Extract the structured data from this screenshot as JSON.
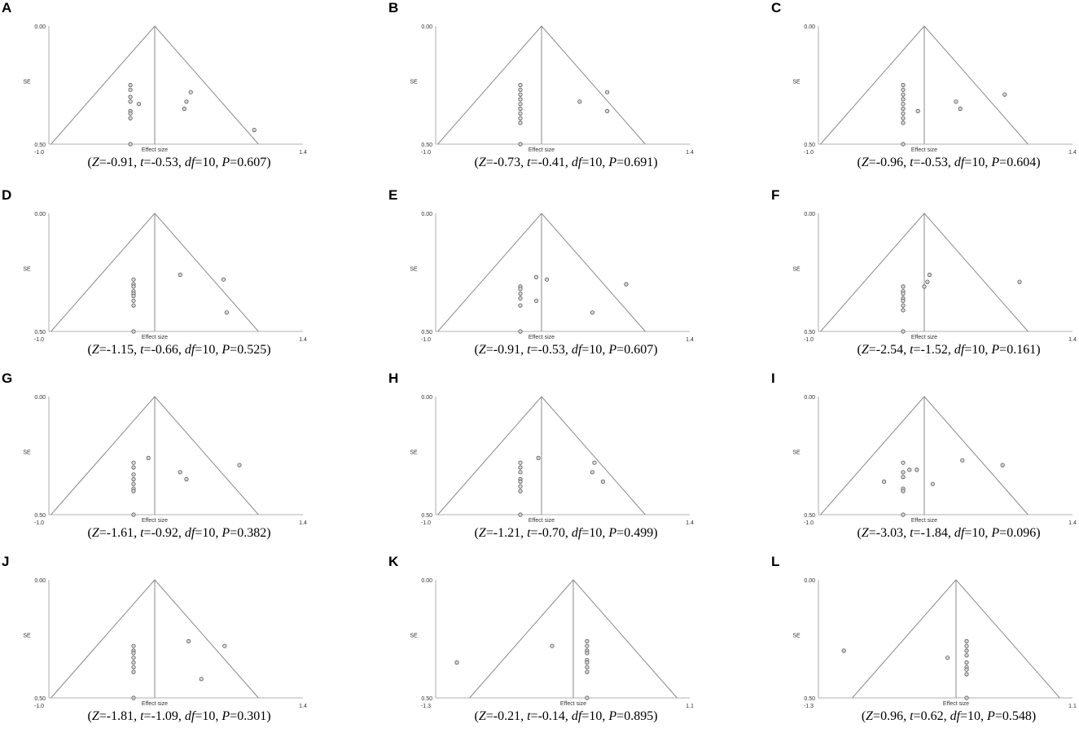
{
  "common": {
    "y_label": "SE",
    "x_label": "Effect size",
    "y_top": "0.00",
    "y_bottom": "0.50"
  },
  "chart_data": [
    {
      "letter": "A",
      "type": "scatter",
      "x_ticks": [
        "-1.0",
        "1.4"
      ],
      "xlim": [
        -1.0,
        1.4
      ],
      "ylim": [
        0.0,
        0.5
      ],
      "center": 0.0,
      "points": [
        [
          -0.23,
          0.25
        ],
        [
          -0.23,
          0.27
        ],
        [
          -0.23,
          0.3
        ],
        [
          -0.23,
          0.32
        ],
        [
          -0.15,
          0.33
        ],
        [
          -0.23,
          0.36
        ],
        [
          -0.23,
          0.37
        ],
        [
          -0.23,
          0.39
        ],
        [
          0.34,
          0.28
        ],
        [
          0.3,
          0.32
        ],
        [
          0.28,
          0.35
        ],
        [
          0.94,
          0.44
        ],
        [
          -0.23,
          0.5
        ]
      ],
      "stats": {
        "Z": "-0.91",
        "t": "-0.53",
        "df": "10",
        "P": "0.607"
      }
    },
    {
      "letter": "B",
      "type": "scatter",
      "x_ticks": [
        "-1.0",
        "1.4"
      ],
      "xlim": [
        -1.0,
        1.4
      ],
      "ylim": [
        0.0,
        0.5
      ],
      "center": 0.0,
      "points": [
        [
          -0.2,
          0.25
        ],
        [
          -0.2,
          0.27
        ],
        [
          -0.2,
          0.29
        ],
        [
          -0.2,
          0.31
        ],
        [
          -0.2,
          0.33
        ],
        [
          -0.2,
          0.35
        ],
        [
          -0.2,
          0.37
        ],
        [
          -0.2,
          0.39
        ],
        [
          -0.2,
          0.41
        ],
        [
          0.36,
          0.32
        ],
        [
          0.62,
          0.28
        ],
        [
          0.62,
          0.36
        ],
        [
          -0.2,
          0.5
        ]
      ],
      "stats": {
        "Z": "-0.73",
        "t": "-0.41",
        "df": "10",
        "P": "0.691"
      }
    },
    {
      "letter": "C",
      "type": "scatter",
      "x_ticks": [
        "-1.0",
        "1.4"
      ],
      "xlim": [
        -1.0,
        1.4
      ],
      "ylim": [
        0.0,
        0.5
      ],
      "center": 0.0,
      "points": [
        [
          -0.2,
          0.25
        ],
        [
          -0.2,
          0.27
        ],
        [
          -0.2,
          0.29
        ],
        [
          -0.2,
          0.31
        ],
        [
          -0.2,
          0.33
        ],
        [
          -0.2,
          0.35
        ],
        [
          -0.2,
          0.37
        ],
        [
          -0.2,
          0.39
        ],
        [
          -0.2,
          0.41
        ],
        [
          -0.06,
          0.36
        ],
        [
          0.3,
          0.32
        ],
        [
          0.34,
          0.35
        ],
        [
          0.76,
          0.29
        ],
        [
          -0.2,
          0.5
        ]
      ],
      "stats": {
        "Z": "-0.96",
        "t": "-0.53",
        "df": "10",
        "P": "0.604"
      }
    },
    {
      "letter": "D",
      "type": "scatter",
      "x_ticks": [
        "-1.0",
        "1.4"
      ],
      "xlim": [
        -1.0,
        1.4
      ],
      "ylim": [
        0.0,
        0.5
      ],
      "center": 0.0,
      "points": [
        [
          -0.2,
          0.28
        ],
        [
          -0.2,
          0.3
        ],
        [
          -0.2,
          0.31
        ],
        [
          -0.2,
          0.33
        ],
        [
          -0.2,
          0.34
        ],
        [
          -0.2,
          0.35
        ],
        [
          -0.2,
          0.37
        ],
        [
          -0.2,
          0.39
        ],
        [
          0.24,
          0.26
        ],
        [
          0.65,
          0.28
        ],
        [
          0.68,
          0.42
        ],
        [
          -0.2,
          0.5
        ]
      ],
      "stats": {
        "Z": "-1.15",
        "t": "-0.66",
        "df": "10",
        "P": "0.525"
      }
    },
    {
      "letter": "E",
      "type": "scatter",
      "x_ticks": [
        "-1.0",
        "1.4"
      ],
      "xlim": [
        -1.0,
        1.4
      ],
      "ylim": [
        0.0,
        0.5
      ],
      "center": 0.0,
      "points": [
        [
          -0.2,
          0.31
        ],
        [
          -0.2,
          0.32
        ],
        [
          -0.2,
          0.34
        ],
        [
          -0.2,
          0.36
        ],
        [
          -0.2,
          0.39
        ],
        [
          -0.05,
          0.27
        ],
        [
          0.05,
          0.28
        ],
        [
          -0.05,
          0.37
        ],
        [
          0.48,
          0.42
        ],
        [
          0.8,
          0.3
        ],
        [
          -0.2,
          0.5
        ]
      ],
      "stats": {
        "Z": "-0.91",
        "t": "-0.53",
        "df": "10",
        "P": "0.607"
      }
    },
    {
      "letter": "F",
      "type": "scatter",
      "x_ticks": [
        "-1.0",
        "1.4"
      ],
      "xlim": [
        -1.0,
        1.4
      ],
      "ylim": [
        0.0,
        0.5
      ],
      "center": 0.0,
      "points": [
        [
          -0.2,
          0.31
        ],
        [
          -0.2,
          0.33
        ],
        [
          -0.2,
          0.34
        ],
        [
          -0.2,
          0.36
        ],
        [
          -0.2,
          0.37
        ],
        [
          -0.2,
          0.39
        ],
        [
          -0.2,
          0.41
        ],
        [
          0.0,
          0.31
        ],
        [
          0.03,
          0.29
        ],
        [
          0.05,
          0.26
        ],
        [
          0.9,
          0.29
        ],
        [
          -0.2,
          0.5
        ]
      ],
      "stats": {
        "Z": "-2.54",
        "t": "-1.52",
        "df": "10",
        "P": "0.161"
      }
    },
    {
      "letter": "G",
      "type": "scatter",
      "x_ticks": [
        "-1.0",
        "1.4"
      ],
      "xlim": [
        -1.0,
        1.4
      ],
      "ylim": [
        0.0,
        0.5
      ],
      "center": 0.0,
      "points": [
        [
          -0.2,
          0.28
        ],
        [
          -0.2,
          0.3
        ],
        [
          -0.2,
          0.33
        ],
        [
          -0.2,
          0.35
        ],
        [
          -0.2,
          0.37
        ],
        [
          -0.2,
          0.39
        ],
        [
          -0.2,
          0.4
        ],
        [
          -0.06,
          0.26
        ],
        [
          0.24,
          0.32
        ],
        [
          0.3,
          0.35
        ],
        [
          0.8,
          0.29
        ],
        [
          -0.2,
          0.5
        ]
      ],
      "stats": {
        "Z": "-1.61",
        "t": "-0.92",
        "df": "10",
        "P": "0.382"
      }
    },
    {
      "letter": "H",
      "type": "scatter",
      "x_ticks": [
        "-1.0",
        "1.4"
      ],
      "xlim": [
        -1.0,
        1.4
      ],
      "ylim": [
        0.0,
        0.5
      ],
      "center": 0.0,
      "points": [
        [
          -0.2,
          0.28
        ],
        [
          -0.2,
          0.3
        ],
        [
          -0.2,
          0.32
        ],
        [
          -0.2,
          0.35
        ],
        [
          -0.2,
          0.36
        ],
        [
          -0.2,
          0.38
        ],
        [
          -0.2,
          0.4
        ],
        [
          -0.03,
          0.26
        ],
        [
          0.48,
          0.32
        ],
        [
          0.5,
          0.28
        ],
        [
          0.58,
          0.36
        ],
        [
          -0.2,
          0.5
        ]
      ],
      "stats": {
        "Z": "-1.21",
        "t": "-0.70",
        "df": "10",
        "P": "0.499"
      }
    },
    {
      "letter": "I",
      "type": "scatter",
      "x_ticks": [
        "-1.0",
        "1.4"
      ],
      "xlim": [
        -1.0,
        1.4
      ],
      "ylim": [
        0.0,
        0.5
      ],
      "center": 0.0,
      "points": [
        [
          -0.38,
          0.36
        ],
        [
          -0.2,
          0.28
        ],
        [
          -0.2,
          0.32
        ],
        [
          -0.2,
          0.34
        ],
        [
          -0.2,
          0.39
        ],
        [
          -0.2,
          0.4
        ],
        [
          -0.14,
          0.31
        ],
        [
          -0.07,
          0.31
        ],
        [
          0.08,
          0.37
        ],
        [
          0.36,
          0.27
        ],
        [
          0.74,
          0.29
        ],
        [
          -0.2,
          0.5
        ]
      ],
      "stats": {
        "Z": "-3.03",
        "t": "-1.84",
        "df": "10",
        "P": "0.096"
      }
    },
    {
      "letter": "J",
      "type": "scatter",
      "x_ticks": [
        "-1.0",
        "1.4"
      ],
      "xlim": [
        -1.0,
        1.4
      ],
      "ylim": [
        0.0,
        0.5
      ],
      "center": 0.0,
      "points": [
        [
          -0.2,
          0.28
        ],
        [
          -0.2,
          0.3
        ],
        [
          -0.2,
          0.31
        ],
        [
          -0.2,
          0.33
        ],
        [
          -0.2,
          0.35
        ],
        [
          -0.2,
          0.37
        ],
        [
          -0.2,
          0.39
        ],
        [
          0.32,
          0.26
        ],
        [
          0.66,
          0.28
        ],
        [
          0.44,
          0.42
        ],
        [
          -0.2,
          0.5
        ]
      ],
      "stats": {
        "Z": "-1.81",
        "t": "-1.09",
        "df": "10",
        "P": "0.301"
      }
    },
    {
      "letter": "K",
      "type": "scatter",
      "x_ticks": [
        "-1.3",
        "1.1"
      ],
      "xlim": [
        -1.3,
        1.1
      ],
      "ylim": [
        0.0,
        0.5
      ],
      "center": 0.0,
      "points": [
        [
          -1.1,
          0.35
        ],
        [
          -0.2,
          0.28
        ],
        [
          0.13,
          0.26
        ],
        [
          0.13,
          0.28
        ],
        [
          0.13,
          0.3
        ],
        [
          0.13,
          0.31
        ],
        [
          0.13,
          0.34
        ],
        [
          0.13,
          0.35
        ],
        [
          0.13,
          0.37
        ],
        [
          0.13,
          0.39
        ],
        [
          0.13,
          0.5
        ]
      ],
      "stats": {
        "Z": "-0.21",
        "t": "-0.14",
        "df": "10",
        "P": "0.895"
      }
    },
    {
      "letter": "L",
      "type": "scatter",
      "x_ticks": [
        "-1.3",
        "1.1"
      ],
      "xlim": [
        -1.3,
        1.1
      ],
      "ylim": [
        0.0,
        0.5
      ],
      "center": 0.0,
      "points": [
        [
          -1.06,
          0.3
        ],
        [
          -0.08,
          0.33
        ],
        [
          0.1,
          0.26
        ],
        [
          0.1,
          0.28
        ],
        [
          0.1,
          0.3
        ],
        [
          0.1,
          0.32
        ],
        [
          0.1,
          0.35
        ],
        [
          0.1,
          0.37
        ],
        [
          0.1,
          0.38
        ],
        [
          0.1,
          0.4
        ],
        [
          0.1,
          0.5
        ]
      ],
      "stats": {
        "Z": "0.96",
        "t": "0.62",
        "df": "10",
        "P": "0.548"
      }
    }
  ]
}
